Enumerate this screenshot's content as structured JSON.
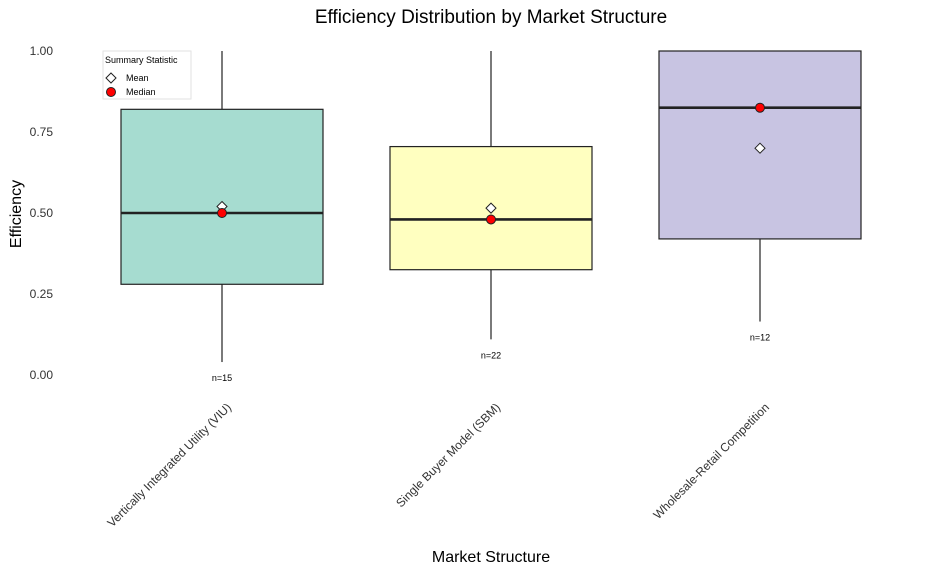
{
  "chart_data": {
    "type": "box",
    "title": "Efficiency Distribution by Market Structure",
    "xlabel": "Market Structure",
    "ylabel": "Efficiency",
    "ylim": [
      0,
      1
    ],
    "yticks": [
      0,
      0.25,
      0.5,
      0.75,
      1
    ],
    "ytick_labels": [
      "0.00",
      "0.25",
      "0.50",
      "0.75",
      "1.00"
    ],
    "grid": false,
    "legend": {
      "title": "Summary Statistic",
      "placement": "top-left",
      "items": [
        {
          "label": "Mean",
          "marker": "diamond",
          "color": "#ffffff"
        },
        {
          "label": "Median",
          "marker": "circle",
          "color": "#ff0000"
        }
      ]
    },
    "categories": [
      "Vertically Integrated Utility (VIU)",
      "Single Buyer Model (SBM)",
      "Wholesale-Retail Competition"
    ],
    "boxes": [
      {
        "whisker_low": 0.04,
        "q1": 0.28,
        "median": 0.5,
        "q3": 0.82,
        "whisker_high": 1.0,
        "mean": 0.52,
        "n_label": "n=15",
        "fill": "#a6dcd0"
      },
      {
        "whisker_low": 0.11,
        "q1": 0.325,
        "median": 0.48,
        "q3": 0.705,
        "whisker_high": 1.0,
        "mean": 0.515,
        "n_label": "n=22",
        "fill": "#ffffc0"
      },
      {
        "whisker_low": 0.165,
        "q1": 0.42,
        "median": 0.825,
        "q3": 1.0,
        "whisker_high": 1.0,
        "mean": 0.7,
        "n_label": "n=12",
        "fill": "#c8c4e2"
      }
    ]
  }
}
